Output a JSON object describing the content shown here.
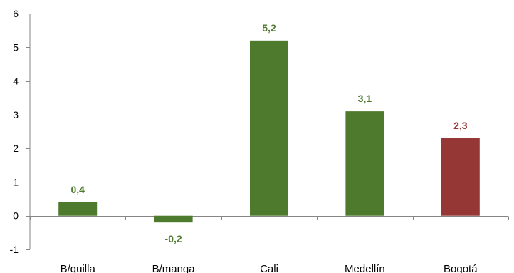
{
  "chart_data": {
    "type": "bar",
    "categories": [
      "B/quilla",
      "B/manga",
      "Cali",
      "Medellín",
      "Bogotá"
    ],
    "values": [
      0.4,
      -0.2,
      5.2,
      3.1,
      2.3
    ],
    "data_labels": [
      "0,4",
      "-0,2",
      "5,2",
      "3,1",
      "2,3"
    ],
    "bar_colors": [
      "#4e7a2e",
      "#4e7a2e",
      "#4e7a2e",
      "#4e7a2e",
      "#953735"
    ],
    "ylim": [
      -1,
      6
    ],
    "yticks": [
      -1,
      0,
      1,
      2,
      3,
      4,
      5,
      6
    ],
    "ytick_labels": [
      "-1",
      "0",
      "1",
      "2",
      "3",
      "4",
      "5",
      "6"
    ],
    "title": "",
    "xlabel": "",
    "ylabel": "",
    "grid": false,
    "legend": "none"
  }
}
